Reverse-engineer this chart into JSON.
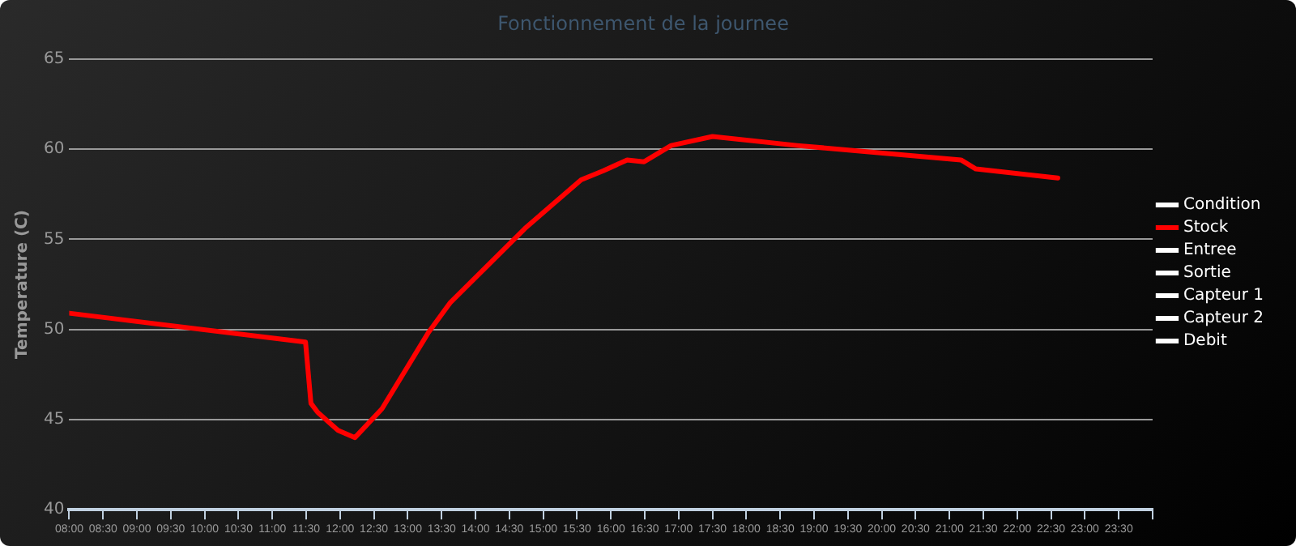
{
  "chart_data": {
    "type": "line",
    "title": "Fonctionnement de la journee",
    "ylabel": "Temperature (C)",
    "x": [
      8.0,
      11.49,
      11.57,
      11.67,
      11.97,
      12.22,
      12.62,
      13.3,
      13.63,
      14.73,
      15.56,
      15.89,
      16.24,
      16.49,
      16.89,
      17.5,
      18.75,
      21.17,
      21.39,
      22.6
    ],
    "series": [
      {
        "name": "Condition",
        "color": "#ffffff",
        "values": [
          null,
          null,
          null,
          null,
          null,
          null,
          null,
          null,
          null,
          null,
          null,
          null,
          null,
          null,
          null,
          null,
          null,
          null,
          null,
          null
        ]
      },
      {
        "name": "Stock",
        "color": "#ff0000",
        "values": [
          50.9,
          49.3,
          45.9,
          45.4,
          44.4,
          44.0,
          45.6,
          49.8,
          51.5,
          55.6,
          58.3,
          58.8,
          59.4,
          59.3,
          60.2,
          60.7,
          60.2,
          59.4,
          58.9,
          58.4
        ]
      },
      {
        "name": "Entree",
        "color": "#ffffff",
        "values": [
          null,
          null,
          null,
          null,
          null,
          null,
          null,
          null,
          null,
          null,
          null,
          null,
          null,
          null,
          null,
          null,
          null,
          null,
          null,
          null
        ]
      },
      {
        "name": "Sortie",
        "color": "#ffffff",
        "values": [
          null,
          null,
          null,
          null,
          null,
          null,
          null,
          null,
          null,
          null,
          null,
          null,
          null,
          null,
          null,
          null,
          null,
          null,
          null,
          null
        ]
      },
      {
        "name": "Capteur 1",
        "color": "#ffffff",
        "values": [
          null,
          null,
          null,
          null,
          null,
          null,
          null,
          null,
          null,
          null,
          null,
          null,
          null,
          null,
          null,
          null,
          null,
          null,
          null,
          null
        ]
      },
      {
        "name": "Capteur 2",
        "color": "#ffffff",
        "values": [
          null,
          null,
          null,
          null,
          null,
          null,
          null,
          null,
          null,
          null,
          null,
          null,
          null,
          null,
          null,
          null,
          null,
          null,
          null,
          null
        ]
      },
      {
        "name": "Debit",
        "color": "#ffffff",
        "values": [
          null,
          null,
          null,
          null,
          null,
          null,
          null,
          null,
          null,
          null,
          null,
          null,
          null,
          null,
          null,
          null,
          null,
          null,
          null,
          null
        ]
      }
    ],
    "xlim": [
      8,
      24
    ],
    "xticks": [
      {
        "value": 8,
        "label": "08:00"
      },
      {
        "value": 8.5,
        "label": "08:30"
      },
      {
        "value": 9,
        "label": "09:00"
      },
      {
        "value": 9.5,
        "label": "09:30"
      },
      {
        "value": 10,
        "label": "10:00"
      },
      {
        "value": 10.5,
        "label": "10:30"
      },
      {
        "value": 11,
        "label": "11:00"
      },
      {
        "value": 11.5,
        "label": "11:30"
      },
      {
        "value": 12,
        "label": "12:00"
      },
      {
        "value": 12.5,
        "label": "12:30"
      },
      {
        "value": 13,
        "label": "13:00"
      },
      {
        "value": 13.5,
        "label": "13:30"
      },
      {
        "value": 14,
        "label": "14:00"
      },
      {
        "value": 14.5,
        "label": "14:30"
      },
      {
        "value": 15,
        "label": "15:00"
      },
      {
        "value": 15.5,
        "label": "15:30"
      },
      {
        "value": 16,
        "label": "16:00"
      },
      {
        "value": 16.5,
        "label": "16:30"
      },
      {
        "value": 17,
        "label": "17:00"
      },
      {
        "value": 17.5,
        "label": "17:30"
      },
      {
        "value": 18,
        "label": "18:00"
      },
      {
        "value": 18.5,
        "label": "18:30"
      },
      {
        "value": 19,
        "label": "19:00"
      },
      {
        "value": 19.5,
        "label": "19:30"
      },
      {
        "value": 20,
        "label": "20:00"
      },
      {
        "value": 20.5,
        "label": "20:30"
      },
      {
        "value": 21,
        "label": "21:00"
      },
      {
        "value": 21.5,
        "label": "21:30"
      },
      {
        "value": 22,
        "label": "22:00"
      },
      {
        "value": 22.5,
        "label": "22:30"
      },
      {
        "value": 23,
        "label": "23:00"
      },
      {
        "value": 23.5,
        "label": "23:30"
      },
      {
        "value": 24,
        "label": null
      }
    ],
    "ylim": [
      40,
      65
    ],
    "yticks": [
      40,
      45,
      50,
      55,
      60,
      65
    ],
    "grid": "y",
    "legend": "right",
    "marker": "none",
    "line_style": "solid"
  }
}
